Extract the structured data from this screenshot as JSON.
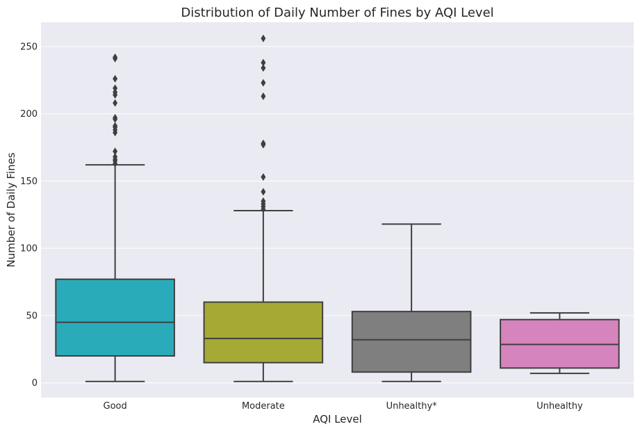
{
  "chart_data": {
    "type": "box",
    "title": "Distribution of Daily Number of Fines by AQI Level",
    "xlabel": "AQI Level",
    "ylabel": "Number of Daily Fines",
    "ylim": [
      -11,
      268
    ],
    "yticks": [
      0,
      50,
      100,
      150,
      200,
      250
    ],
    "grid": "y",
    "background": "#eaeaf2",
    "categories": [
      "Good",
      "Moderate",
      "Unhealthy*",
      "Unhealthy"
    ],
    "boxes": [
      {
        "category": "Good",
        "color": "#2aabb9",
        "whisker_low": 1,
        "q1": 20,
        "median": 45,
        "q3": 77,
        "whisker_high": 162,
        "outliers": [
          163,
          165,
          166,
          168,
          172,
          186,
          188,
          190,
          191,
          196,
          197,
          208,
          214,
          216,
          219,
          226,
          241,
          242
        ]
      },
      {
        "category": "Moderate",
        "color": "#a7a935",
        "whisker_low": 1,
        "q1": 15,
        "median": 33,
        "q3": 60,
        "whisker_high": 128,
        "outliers": [
          129,
          131,
          133,
          135,
          142,
          153,
          177,
          178,
          213,
          223,
          234,
          238,
          256
        ]
      },
      {
        "category": "Unhealthy*",
        "color": "#7f7f7f",
        "whisker_low": 1,
        "q1": 8,
        "median": 32,
        "q3": 53,
        "whisker_high": 118,
        "outliers": []
      },
      {
        "category": "Unhealthy",
        "color": "#d684bd",
        "whisker_low": 7,
        "q1": 11,
        "median": 28.5,
        "q3": 47,
        "whisker_high": 52,
        "outliers": []
      }
    ]
  }
}
